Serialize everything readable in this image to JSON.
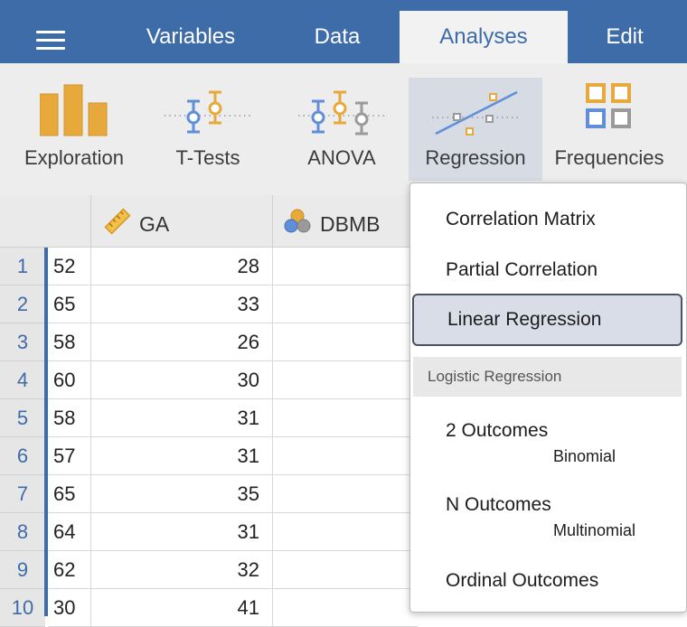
{
  "menu": {
    "tabs": [
      {
        "label": "Variables"
      },
      {
        "label": "Data"
      },
      {
        "label": "Analyses",
        "active": true
      },
      {
        "label": "Edit"
      }
    ]
  },
  "ribbon": {
    "buttons": [
      {
        "label": "Exploration",
        "icon": "exploration-icon"
      },
      {
        "label": "T-Tests",
        "icon": "t-tests-icon"
      },
      {
        "label": "ANOVA",
        "icon": "anova-icon"
      },
      {
        "label": "Regression",
        "icon": "regression-icon",
        "active": true
      },
      {
        "label": "Frequencies",
        "icon": "frequencies-icon"
      }
    ]
  },
  "sheet": {
    "columns": [
      {
        "label": "GA",
        "icon": "ruler-icon"
      },
      {
        "label": "DBMB",
        "icon": "nominal-circles-icon"
      }
    ],
    "rows": [
      {
        "num": "1",
        "c1": "52",
        "c2": "28"
      },
      {
        "num": "2",
        "c1": "65",
        "c2": "33"
      },
      {
        "num": "3",
        "c1": "58",
        "c2": "26"
      },
      {
        "num": "4",
        "c1": "60",
        "c2": "30"
      },
      {
        "num": "5",
        "c1": "58",
        "c2": "31"
      },
      {
        "num": "6",
        "c1": "57",
        "c2": "31"
      },
      {
        "num": "7",
        "c1": "65",
        "c2": "35"
      },
      {
        "num": "8",
        "c1": "64",
        "c2": "31"
      },
      {
        "num": "9",
        "c1": "62",
        "c2": "32"
      },
      {
        "num": "10",
        "c1": "30",
        "c2": "41"
      }
    ]
  },
  "dropdown": {
    "items": [
      {
        "label": "Correlation Matrix"
      },
      {
        "label": "Partial Correlation"
      },
      {
        "label": "Linear Regression",
        "selected": true
      }
    ],
    "group_header": "Logistic Regression",
    "group_items": [
      {
        "label": "2 Outcomes",
        "sub": "Binomial"
      },
      {
        "label": "N Outcomes",
        "sub": "Multinomial"
      },
      {
        "label": "Ordinal Outcomes"
      }
    ]
  },
  "colors": {
    "brand_blue": "#3e6ca9",
    "icon_orange": "#e8a93c",
    "icon_blue": "#5f8fd8",
    "icon_gray": "#9a9a9a"
  }
}
